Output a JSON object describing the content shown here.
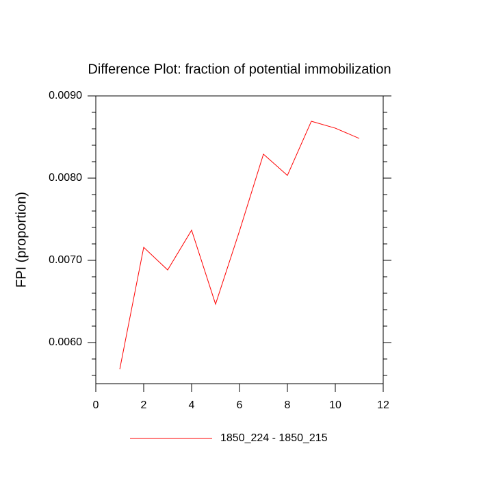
{
  "chart_data": {
    "type": "line",
    "title": "Difference Plot: fraction of potential immobilization",
    "y_label": "FPI  (proportion)",
    "x": [
      1,
      2,
      3,
      4,
      5,
      6,
      7,
      8,
      9,
      10,
      11
    ],
    "series": [
      {
        "name": "1850_224 - 1850_215",
        "color": "#ff0000",
        "values": [
          0.005675,
          0.007158,
          0.006883,
          0.007367,
          0.006467,
          0.007358,
          0.008292,
          0.008033,
          0.008692,
          0.008608,
          0.008483
        ]
      }
    ],
    "xlim": [
      0,
      12
    ],
    "xticks": [
      0,
      2,
      4,
      6,
      8,
      10,
      12
    ],
    "ylim": [
      0.0055,
      0.009
    ],
    "yticks": [
      {
        "value": 0.006,
        "label": "0.0060"
      },
      {
        "value": 0.007,
        "label": "0.0070"
      },
      {
        "value": 0.008,
        "label": "0.0080"
      },
      {
        "value": 0.009,
        "label": "0.0090"
      }
    ],
    "yminor_ticks": [
      0.0056,
      0.0058,
      0.0062,
      0.0064,
      0.0066,
      0.0068,
      0.0072,
      0.0074,
      0.0076,
      0.0078,
      0.0082,
      0.0084,
      0.0086,
      0.0088
    ],
    "legend": "bottom"
  }
}
